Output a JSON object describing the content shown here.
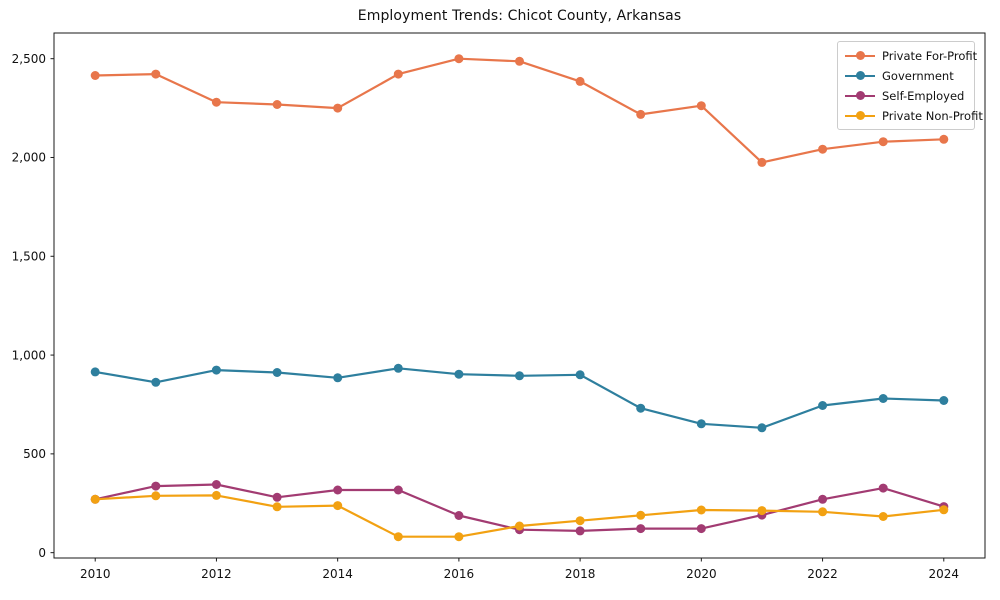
{
  "window": {
    "background": "#ffffff"
  },
  "chart_data": {
    "type": "line",
    "title": "Employment Trends: Chicot County, Arkansas",
    "xlabel": "",
    "ylabel": "",
    "grid": false,
    "legend_position": "upper right",
    "frame": "all-four-spines",
    "axis_color": "#1a1a1a",
    "x": [
      2010,
      2011,
      2012,
      2013,
      2014,
      2015,
      2016,
      2017,
      2018,
      2019,
      2020,
      2021,
      2022,
      2023,
      2024
    ],
    "x_ticks": [
      2010,
      2012,
      2014,
      2016,
      2018,
      2020,
      2022,
      2024
    ],
    "x_tick_labels": [
      "2010",
      "2012",
      "2014",
      "2016",
      "2018",
      "2020",
      "2022",
      "2024"
    ],
    "y_ticks": [
      0,
      500,
      1000,
      1500,
      2000,
      2500
    ],
    "y_tick_labels": [
      "0",
      "500",
      "1,000",
      "1,500",
      "2,000",
      "2,500"
    ],
    "xlim": [
      2009.32,
      2024.68
    ],
    "ylim": [
      -27,
      2630
    ],
    "marker": "circle",
    "series": [
      {
        "name": "Private For-Profit",
        "color": "#E8764B",
        "values": [
          2415,
          2422,
          2280,
          2268,
          2250,
          2422,
          2500,
          2487,
          2385,
          2218,
          2262,
          1975,
          2042,
          2080,
          2092
        ]
      },
      {
        "name": "Government",
        "color": "#2E7F9E",
        "values": [
          915,
          862,
          924,
          912,
          885,
          933,
          903,
          895,
          900,
          731,
          652,
          632,
          745,
          780,
          770
        ]
      },
      {
        "name": "Self-Employed",
        "color": "#A23B72",
        "values": [
          270,
          337,
          345,
          280,
          317,
          317,
          188,
          116,
          110,
          122,
          122,
          190,
          270,
          327,
          233
        ]
      },
      {
        "name": "Private Non-Profit",
        "color": "#F2A112",
        "values": [
          270,
          288,
          290,
          232,
          238,
          81,
          81,
          135,
          162,
          189,
          216,
          213,
          207,
          183,
          217
        ]
      }
    ]
  }
}
